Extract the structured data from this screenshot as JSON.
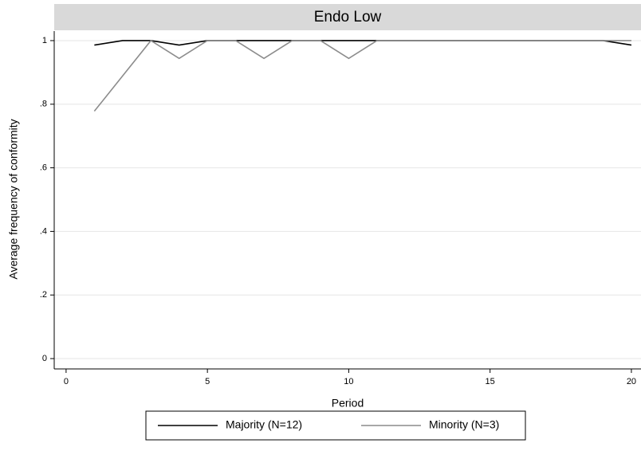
{
  "chart_data": {
    "type": "line",
    "title": "Endo Low",
    "x_label": "Period",
    "y_label": "Average frequency of conformity",
    "x": [
      1,
      2,
      3,
      4,
      5,
      6,
      7,
      8,
      9,
      10,
      11,
      12,
      13,
      14,
      15,
      16,
      17,
      18,
      19,
      20
    ],
    "series": [
      {
        "name": "Majority (N=12)",
        "color": "#000000",
        "values": [
          0.986,
          1,
          1,
          0.986,
          1,
          1,
          1,
          1,
          1,
          1,
          1,
          1,
          1,
          1,
          1,
          1,
          1,
          1,
          1,
          0.986
        ]
      },
      {
        "name": "Minority (N=3)",
        "color": "#8c8c8c",
        "values": [
          0.778,
          0.889,
          1,
          0.944,
          1,
          1,
          0.944,
          1,
          1,
          0.944,
          1,
          1,
          1,
          1,
          1,
          1,
          1,
          1,
          1,
          1
        ]
      }
    ],
    "xlim": [
      -0.42,
      20.34
    ],
    "xticks": [
      0,
      5,
      10,
      15,
      20
    ],
    "ylim": [
      -0.03,
      1.03
    ],
    "yticks": [
      0,
      {
        "value": 0.2,
        "label": ".2"
      },
      {
        "value": 0.4,
        "label": ".4"
      },
      {
        "value": 0.6,
        "label": ".6"
      },
      {
        "value": 0.8,
        "label": ".8"
      },
      1
    ],
    "grid": true,
    "legend": "bottom"
  }
}
